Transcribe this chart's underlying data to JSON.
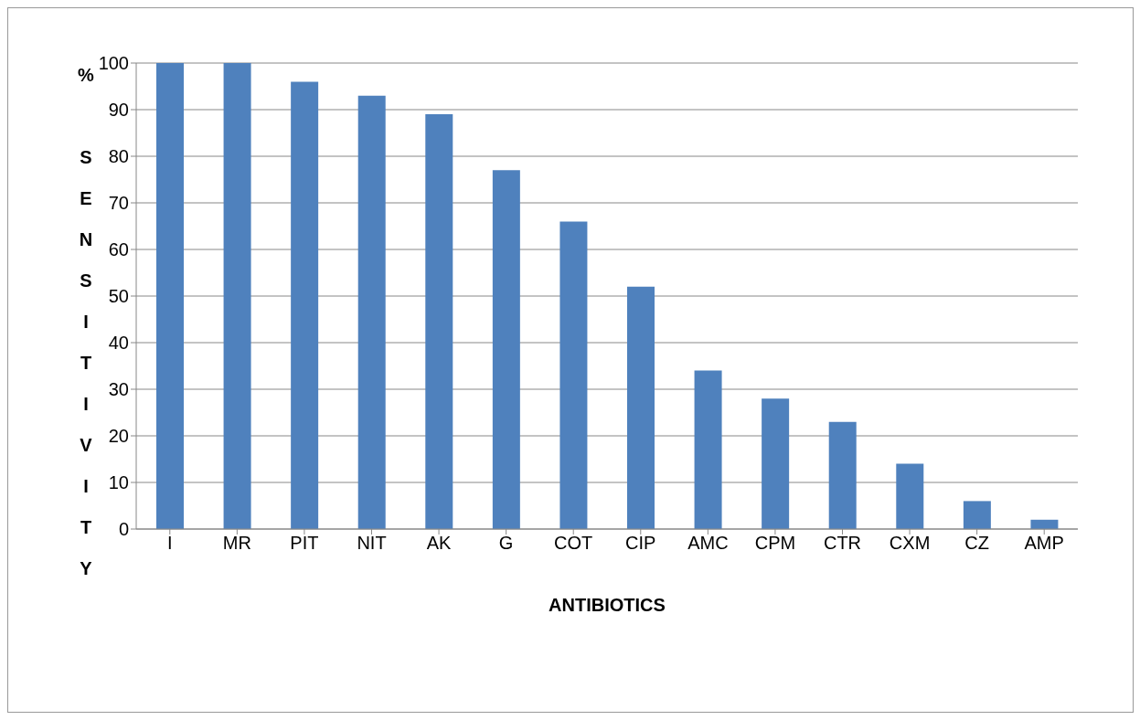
{
  "chart_data": {
    "type": "bar",
    "xlabel": "ANTIBIOTICS",
    "ylabel": "SENSITIVITY",
    "annotations": [
      "%"
    ],
    "categories": [
      "I",
      "MR",
      "PIT",
      "NIT",
      "AK",
      "G",
      "COT",
      "CIP",
      "AMC",
      "CPM",
      "CTR",
      "CXM",
      "CZ",
      "AMP"
    ],
    "values": [
      100,
      100,
      96,
      93,
      89,
      77,
      66,
      52,
      34,
      28,
      23,
      14,
      6,
      2
    ],
    "color": "#4f81bd",
    "ylim": [
      0,
      100
    ],
    "yticks": [
      0,
      10,
      20,
      30,
      40,
      50,
      60,
      70,
      80,
      90,
      100
    ],
    "grid": "y"
  }
}
